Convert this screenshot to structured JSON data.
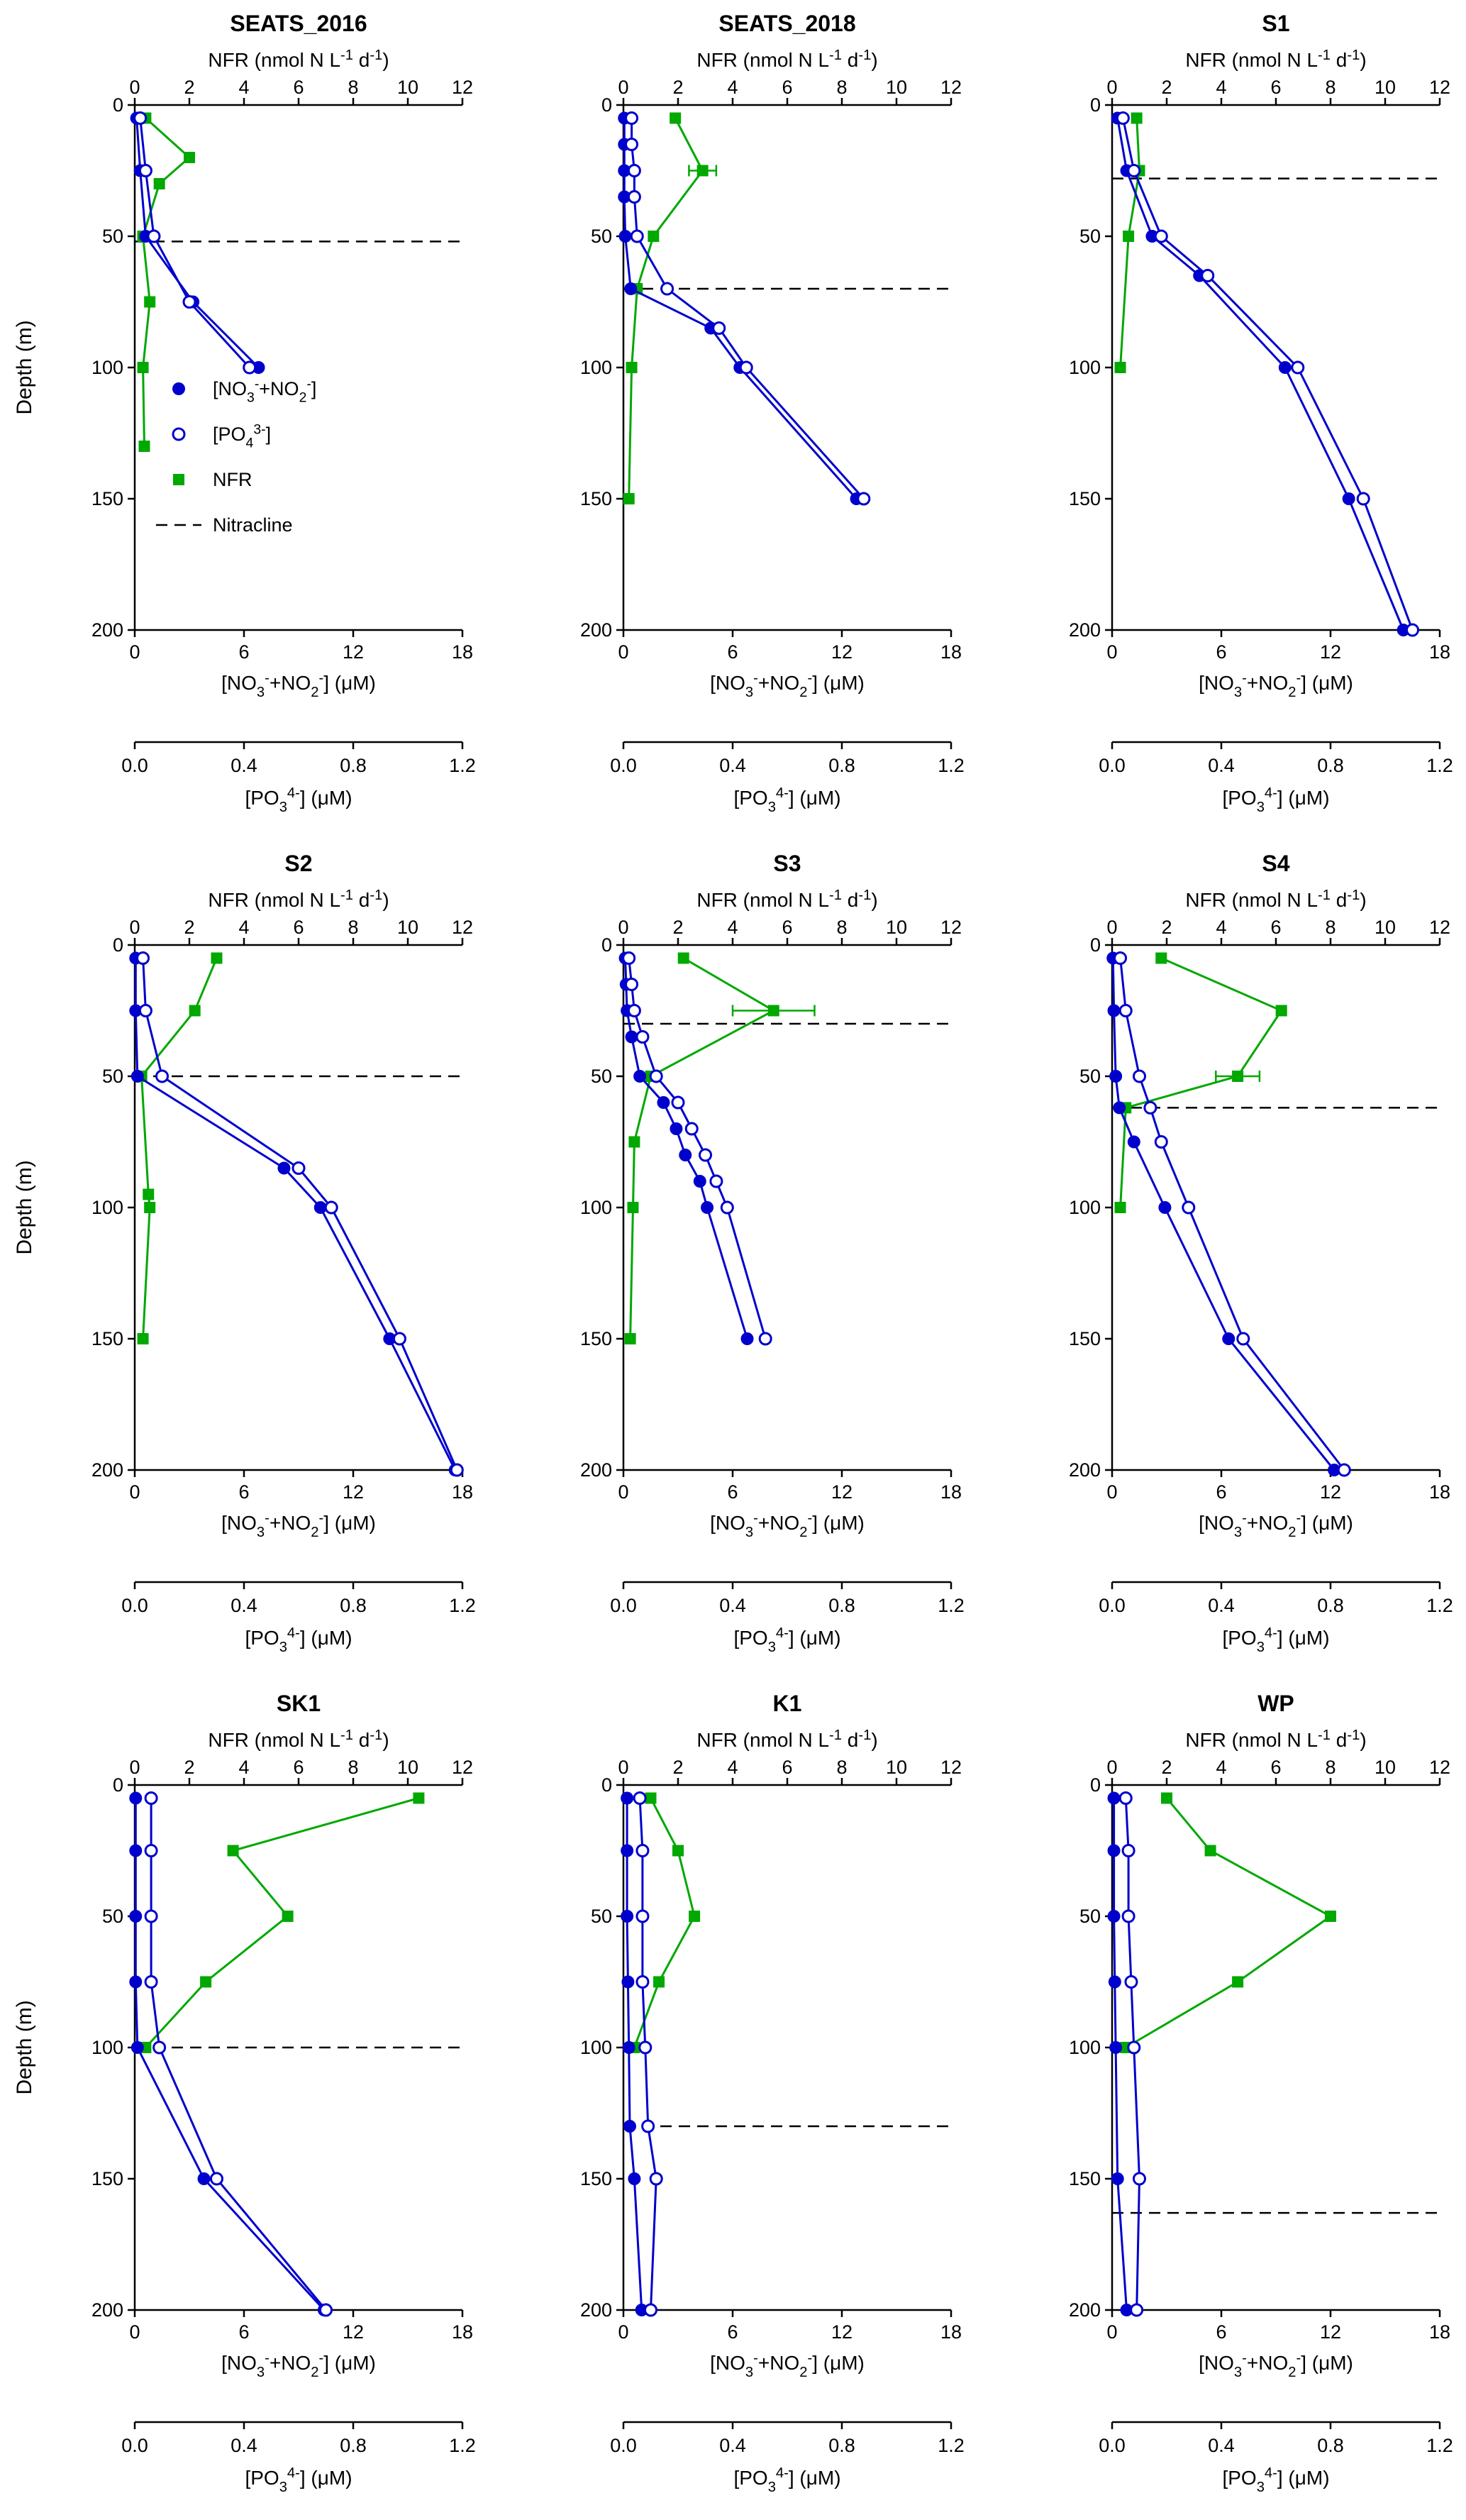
{
  "page": {
    "background": "#ffffff"
  },
  "colors": {
    "blue": "#0000cd",
    "green": "#00a800",
    "black": "#000000"
  },
  "chart_data": {
    "type": "line",
    "description": "3x3 grid of vertical ocean depth profiles; y axis is depth (inverted, 0 at top). Three series per panel plus a dashed nitracline depth line. Legend inside first panel.",
    "point_format": "[depth_m, value, optional_x_error]",
    "axes": {
      "top": {
        "label_segments": [
          [
            "NFR (nmol N L",
            0
          ],
          [
            "-1",
            1
          ],
          [
            " d",
            0
          ],
          [
            "-1",
            1
          ],
          [
            ")",
            0
          ]
        ],
        "range": [
          0,
          12
        ],
        "ticks": [
          "0",
          "2",
          "4",
          "6",
          "8",
          "10",
          "12"
        ]
      },
      "bottom": {
        "label_segments": [
          [
            "[NO",
            0
          ],
          [
            "3",
            -1
          ],
          [
            "-",
            1
          ],
          [
            "+NO",
            0
          ],
          [
            "2",
            -1
          ],
          [
            "-",
            1
          ],
          [
            "] (μM)",
            0
          ]
        ],
        "range": [
          0,
          18
        ],
        "ticks": [
          "0",
          "6",
          "12",
          "18"
        ]
      },
      "po4": {
        "label_segments": [
          [
            "[PO",
            0
          ],
          [
            "3",
            -1
          ],
          [
            "4-",
            1
          ],
          [
            "] (μM)",
            0
          ]
        ],
        "range": [
          0,
          1.2
        ],
        "ticks": [
          "0.0",
          "0.4",
          "0.8",
          "1.2"
        ]
      },
      "depth": {
        "label": "Depth (m)",
        "range": [
          0,
          200
        ],
        "ticks": [
          "0",
          "50",
          "100",
          "150",
          "200"
        ],
        "inverted": true
      }
    },
    "series_defs": [
      {
        "key": "no3no2_uM",
        "axis": "bottom",
        "marker": "filled-circle",
        "color_key": "blue",
        "label_segments": [
          [
            "[NO",
            0
          ],
          [
            "3",
            -1
          ],
          [
            "-",
            1
          ],
          [
            "+NO",
            0
          ],
          [
            "2",
            -1
          ],
          [
            "-",
            1
          ],
          [
            "]",
            0
          ]
        ]
      },
      {
        "key": "po4_uM",
        "axis": "po4",
        "marker": "open-circle",
        "color_key": "blue",
        "label_segments": [
          [
            "[PO",
            0
          ],
          [
            "4",
            -1
          ],
          [
            "3-",
            1
          ],
          [
            "]",
            0
          ]
        ]
      },
      {
        "key": "nfr_nmol",
        "axis": "top",
        "marker": "filled-square",
        "color_key": "green",
        "label_segments": [
          [
            "NFR",
            0
          ]
        ]
      },
      {
        "key": "nitracline",
        "axis": null,
        "marker": "dashed-line",
        "color_key": "black",
        "label_segments": [
          [
            "Nitracline",
            0
          ]
        ]
      }
    ],
    "legend_position": "inside-first-panel",
    "panels": [
      {
        "title": "SEATS_2016",
        "show_legend": true,
        "show_depth_label": true,
        "nitracline_depth_m": 52,
        "series": {
          "no3no2_uM": [
            [
              5,
              0.1
            ],
            [
              25,
              0.3
            ],
            [
              50,
              0.6
            ],
            [
              75,
              3.2
            ],
            [
              100,
              6.8
            ]
          ],
          "po4_uM": [
            [
              5,
              0.02
            ],
            [
              25,
              0.04
            ],
            [
              50,
              0.07
            ],
            [
              75,
              0.2
            ],
            [
              100,
              0.42
            ]
          ],
          "nfr_nmol": [
            [
              5,
              0.4
            ],
            [
              20,
              2.0
            ],
            [
              30,
              0.9
            ],
            [
              50,
              0.3
            ],
            [
              75,
              0.55
            ],
            [
              100,
              0.3
            ],
            [
              130,
              0.35
            ]
          ]
        }
      },
      {
        "title": "SEATS_2018",
        "show_legend": false,
        "show_depth_label": false,
        "nitracline_depth_m": 70,
        "series": {
          "no3no2_uM": [
            [
              5,
              0.05
            ],
            [
              15,
              0.05
            ],
            [
              25,
              0.05
            ],
            [
              35,
              0.05
            ],
            [
              50,
              0.1
            ],
            [
              70,
              0.4
            ],
            [
              85,
              4.8
            ],
            [
              100,
              6.4
            ],
            [
              150,
              12.8
            ]
          ],
          "po4_uM": [
            [
              5,
              0.03
            ],
            [
              15,
              0.03
            ],
            [
              25,
              0.04
            ],
            [
              35,
              0.04
            ],
            [
              50,
              0.05
            ],
            [
              70,
              0.16
            ],
            [
              85,
              0.35
            ],
            [
              100,
              0.45
            ],
            [
              150,
              0.88
            ]
          ],
          "nfr_nmol": [
            [
              5,
              1.9
            ],
            [
              25,
              2.9,
              0.5
            ],
            [
              50,
              1.1
            ],
            [
              70,
              0.5
            ],
            [
              100,
              0.3
            ],
            [
              150,
              0.2
            ]
          ]
        }
      },
      {
        "title": "S1",
        "show_legend": false,
        "show_depth_label": false,
        "nitracline_depth_m": 28,
        "series": {
          "no3no2_uM": [
            [
              5,
              0.3
            ],
            [
              25,
              0.8
            ],
            [
              50,
              2.2
            ],
            [
              65,
              4.8
            ],
            [
              100,
              9.5
            ],
            [
              150,
              13.0
            ],
            [
              200,
              16.0
            ]
          ],
          "po4_uM": [
            [
              5,
              0.04
            ],
            [
              25,
              0.08
            ],
            [
              50,
              0.18
            ],
            [
              65,
              0.35
            ],
            [
              100,
              0.68
            ],
            [
              150,
              0.92
            ],
            [
              200,
              1.1
            ]
          ],
          "nfr_nmol": [
            [
              5,
              0.9
            ],
            [
              25,
              1.0
            ],
            [
              50,
              0.6
            ],
            [
              100,
              0.3
            ]
          ]
        }
      },
      {
        "title": "S2",
        "show_legend": false,
        "show_depth_label": true,
        "nitracline_depth_m": 50,
        "series": {
          "no3no2_uM": [
            [
              5,
              0.05
            ],
            [
              25,
              0.05
            ],
            [
              50,
              0.15
            ],
            [
              85,
              8.2
            ],
            [
              100,
              10.2
            ],
            [
              150,
              14.0
            ],
            [
              200,
              17.6
            ]
          ],
          "po4_uM": [
            [
              5,
              0.03
            ],
            [
              25,
              0.04
            ],
            [
              50,
              0.1
            ],
            [
              85,
              0.6
            ],
            [
              100,
              0.72
            ],
            [
              150,
              0.97
            ],
            [
              200,
              1.18
            ]
          ],
          "nfr_nmol": [
            [
              5,
              3.0
            ],
            [
              25,
              2.2
            ],
            [
              50,
              0.25
            ],
            [
              95,
              0.5
            ],
            [
              100,
              0.55
            ],
            [
              150,
              0.3
            ]
          ]
        }
      },
      {
        "title": "S3",
        "show_legend": false,
        "show_depth_label": false,
        "nitracline_depth_m": 30,
        "series": {
          "no3no2_uM": [
            [
              5,
              0.1
            ],
            [
              15,
              0.15
            ],
            [
              25,
              0.2
            ],
            [
              35,
              0.45
            ],
            [
              50,
              0.9
            ],
            [
              60,
              2.2
            ],
            [
              70,
              2.9
            ],
            [
              80,
              3.4
            ],
            [
              90,
              4.2
            ],
            [
              100,
              4.6
            ],
            [
              150,
              6.8
            ]
          ],
          "po4_uM": [
            [
              5,
              0.02
            ],
            [
              15,
              0.03
            ],
            [
              25,
              0.04
            ],
            [
              35,
              0.07
            ],
            [
              50,
              0.12
            ],
            [
              60,
              0.2
            ],
            [
              70,
              0.25
            ],
            [
              80,
              0.3
            ],
            [
              90,
              0.34
            ],
            [
              100,
              0.38
            ],
            [
              150,
              0.52
            ]
          ],
          "nfr_nmol": [
            [
              5,
              2.2
            ],
            [
              25,
              5.5,
              1.5
            ],
            [
              50,
              1.0
            ],
            [
              75,
              0.4
            ],
            [
              100,
              0.35
            ],
            [
              150,
              0.25
            ]
          ]
        }
      },
      {
        "title": "S4",
        "show_legend": false,
        "show_depth_label": false,
        "nitracline_depth_m": 62,
        "series": {
          "no3no2_uM": [
            [
              5,
              0.05
            ],
            [
              25,
              0.1
            ],
            [
              50,
              0.2
            ],
            [
              62,
              0.4
            ],
            [
              75,
              1.2
            ],
            [
              100,
              2.9
            ],
            [
              150,
              6.4
            ],
            [
              200,
              12.2
            ]
          ],
          "po4_uM": [
            [
              5,
              0.03
            ],
            [
              25,
              0.05
            ],
            [
              50,
              0.1
            ],
            [
              62,
              0.14
            ],
            [
              75,
              0.18
            ],
            [
              100,
              0.28
            ],
            [
              150,
              0.48
            ],
            [
              200,
              0.85
            ]
          ],
          "nfr_nmol": [
            [
              5,
              1.8
            ],
            [
              25,
              6.2
            ],
            [
              50,
              4.6,
              0.8
            ],
            [
              62,
              0.5
            ],
            [
              100,
              0.3
            ]
          ]
        }
      },
      {
        "title": "SK1",
        "show_legend": false,
        "show_depth_label": true,
        "nitracline_depth_m": 100,
        "series": {
          "no3no2_uM": [
            [
              5,
              0.05
            ],
            [
              25,
              0.05
            ],
            [
              50,
              0.05
            ],
            [
              75,
              0.05
            ],
            [
              100,
              0.15
            ],
            [
              150,
              3.8
            ],
            [
              200,
              10.4
            ]
          ],
          "po4_uM": [
            [
              5,
              0.06
            ],
            [
              25,
              0.06
            ],
            [
              50,
              0.06
            ],
            [
              75,
              0.06
            ],
            [
              100,
              0.09
            ],
            [
              150,
              0.3
            ],
            [
              200,
              0.7
            ]
          ],
          "nfr_nmol": [
            [
              5,
              10.4
            ],
            [
              25,
              3.6
            ],
            [
              50,
              5.6
            ],
            [
              75,
              2.6
            ],
            [
              100,
              0.4
            ]
          ]
        }
      },
      {
        "title": "K1",
        "show_legend": false,
        "show_depth_label": false,
        "nitracline_depth_m": 130,
        "series": {
          "no3no2_uM": [
            [
              5,
              0.2
            ],
            [
              25,
              0.2
            ],
            [
              50,
              0.2
            ],
            [
              75,
              0.25
            ],
            [
              100,
              0.3
            ],
            [
              130,
              0.35
            ],
            [
              150,
              0.6
            ],
            [
              200,
              1.0
            ]
          ],
          "po4_uM": [
            [
              5,
              0.06
            ],
            [
              25,
              0.07
            ],
            [
              50,
              0.07
            ],
            [
              75,
              0.07
            ],
            [
              100,
              0.08
            ],
            [
              130,
              0.09
            ],
            [
              150,
              0.12
            ],
            [
              200,
              0.1
            ]
          ],
          "nfr_nmol": [
            [
              5,
              1.0
            ],
            [
              25,
              2.0
            ],
            [
              50,
              2.6
            ],
            [
              75,
              1.3
            ],
            [
              100,
              0.4
            ]
          ]
        }
      },
      {
        "title": "WP",
        "show_legend": false,
        "show_depth_label": false,
        "nitracline_depth_m": 163,
        "series": {
          "no3no2_uM": [
            [
              5,
              0.1
            ],
            [
              25,
              0.1
            ],
            [
              50,
              0.1
            ],
            [
              75,
              0.15
            ],
            [
              100,
              0.2
            ],
            [
              150,
              0.3
            ],
            [
              200,
              0.8
            ]
          ],
          "po4_uM": [
            [
              5,
              0.05
            ],
            [
              25,
              0.06
            ],
            [
              50,
              0.06
            ],
            [
              75,
              0.07
            ],
            [
              100,
              0.08
            ],
            [
              150,
              0.1
            ],
            [
              200,
              0.09
            ]
          ],
          "nfr_nmol": [
            [
              5,
              2.0
            ],
            [
              25,
              3.6
            ],
            [
              50,
              8.0
            ],
            [
              75,
              4.6
            ],
            [
              100,
              0.5
            ]
          ]
        }
      }
    ]
  }
}
